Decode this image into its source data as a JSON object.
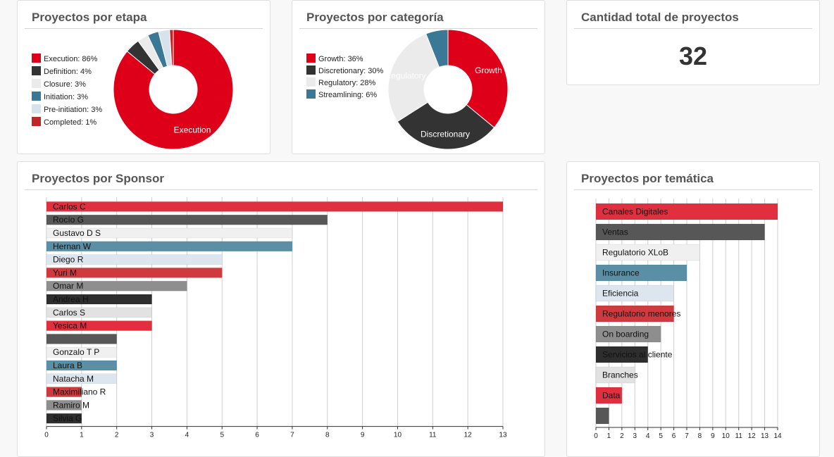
{
  "colors": {
    "red": "#dd0018",
    "dark": "#333333",
    "light": "#ebebeb",
    "teal": "#3a7896",
    "pale_blue": "#d8e2ec",
    "crimson": "#c02624",
    "bar_red": "#e0303f",
    "bar_dark": "#575757",
    "bar_light": "#f0f0f0",
    "bar_teal": "#5b8fa6",
    "bar_pale": "#dde6ee",
    "bar_crimson": "#cf3a3e",
    "bar_gray": "#8e8e8e",
    "bar_black": "#2e2e2e",
    "bar_silver": "#e2e2e2"
  },
  "cards": {
    "etapa_title": "Proyectos por etapa",
    "categoria_title": "Proyectos por categoría",
    "total_title": "Cantidad total de proyectos",
    "total_value": "32",
    "sponsor_title": "Proyectos por Sponsor",
    "tematica_title": "Proyectos por temática"
  },
  "chart_data": [
    {
      "id": "etapa",
      "type": "pie",
      "title": "Proyectos por etapa",
      "slices": [
        {
          "label": "Execution",
          "value": 86,
          "legend": "Execution: 86%",
          "color": "#dd0018",
          "show_label": true
        },
        {
          "label": "Definition",
          "value": 4,
          "legend": "Definition: 4%",
          "color": "#333333",
          "show_label": false
        },
        {
          "label": "Closure",
          "value": 3,
          "legend": "Closure: 3%",
          "color": "#ebebeb",
          "show_label": false
        },
        {
          "label": "Initiation",
          "value": 3,
          "legend": "Initiation: 3%",
          "color": "#3a7896",
          "show_label": false
        },
        {
          "label": "Pre-initiation",
          "value": 3,
          "legend": "Pre-initiation: 3%",
          "color": "#d8e2ec",
          "show_label": false
        },
        {
          "label": "Completed",
          "value": 1,
          "legend": "Completed: 1%",
          "color": "#c02624",
          "show_label": false
        }
      ]
    },
    {
      "id": "categoria",
      "type": "pie",
      "title": "Proyectos por categoría",
      "slices": [
        {
          "label": "Growth",
          "value": 36,
          "legend": "Growth: 36%",
          "color": "#dd0018",
          "show_label": true
        },
        {
          "label": "Discretionary",
          "value": 30,
          "legend": "Discretionary: 30%",
          "color": "#333333",
          "show_label": true
        },
        {
          "label": "Regulatory",
          "value": 28,
          "legend": "Regulatory: 28%",
          "color": "#ebebeb",
          "show_label": true
        },
        {
          "label": "Streamlining",
          "value": 6,
          "legend": "Streamlining: 6%",
          "color": "#3a7896",
          "show_label": false
        }
      ]
    },
    {
      "id": "sponsor",
      "type": "bar",
      "orientation": "horizontal",
      "title": "Proyectos por Sponsor",
      "xlim": [
        0,
        13
      ],
      "ticks": [
        0,
        1,
        2,
        3,
        4,
        5,
        6,
        7,
        8,
        9,
        10,
        11,
        12,
        13
      ],
      "grid": true,
      "categories": [
        "Carlos C",
        "Rocío G",
        "Gustavo D S",
        "Hernan W",
        "Diego R",
        "Yuri M",
        "Omar M",
        "Andrea H",
        "Carlos S",
        "Yesica M",
        "",
        "Gonzalo T P",
        "Laura B",
        "Natacha M",
        "Maximiliano R",
        "Ramiro M",
        "Silvia G"
      ],
      "values": [
        13,
        8,
        7,
        7,
        5,
        5,
        4,
        3,
        3,
        3,
        2,
        2,
        2,
        2,
        1,
        1,
        1
      ],
      "colors": [
        "#e0303f",
        "#575757",
        "#f0f0f0",
        "#5b8fa6",
        "#dde6ee",
        "#cf3a3e",
        "#8e8e8e",
        "#2e2e2e",
        "#e2e2e2",
        "#e0303f",
        "#575757",
        "#f0f0f0",
        "#5b8fa6",
        "#dde6ee",
        "#cf3a3e",
        "#8e8e8e",
        "#2e2e2e"
      ]
    },
    {
      "id": "tematica",
      "type": "bar",
      "orientation": "horizontal",
      "title": "Proyectos por temática",
      "xlim": [
        0,
        14
      ],
      "ticks": [
        0,
        1,
        2,
        3,
        4,
        5,
        6,
        7,
        8,
        9,
        10,
        11,
        12,
        13,
        14
      ],
      "grid": true,
      "categories": [
        "Canales Digitales",
        "Ventas",
        "Regulatorio XLoB",
        "Insurance",
        "Eficiencia",
        "Regulatorio menores",
        "On boarding",
        "Servicios al cliente",
        "Branches",
        "Data",
        ""
      ],
      "values": [
        14,
        13,
        8,
        7,
        6,
        6,
        5,
        4,
        3,
        2,
        1
      ],
      "colors": [
        "#e0303f",
        "#575757",
        "#f0f0f0",
        "#5b8fa6",
        "#dde6ee",
        "#cf3a3e",
        "#8e8e8e",
        "#2e2e2e",
        "#e2e2e2",
        "#e0303f",
        "#575757"
      ]
    }
  ]
}
